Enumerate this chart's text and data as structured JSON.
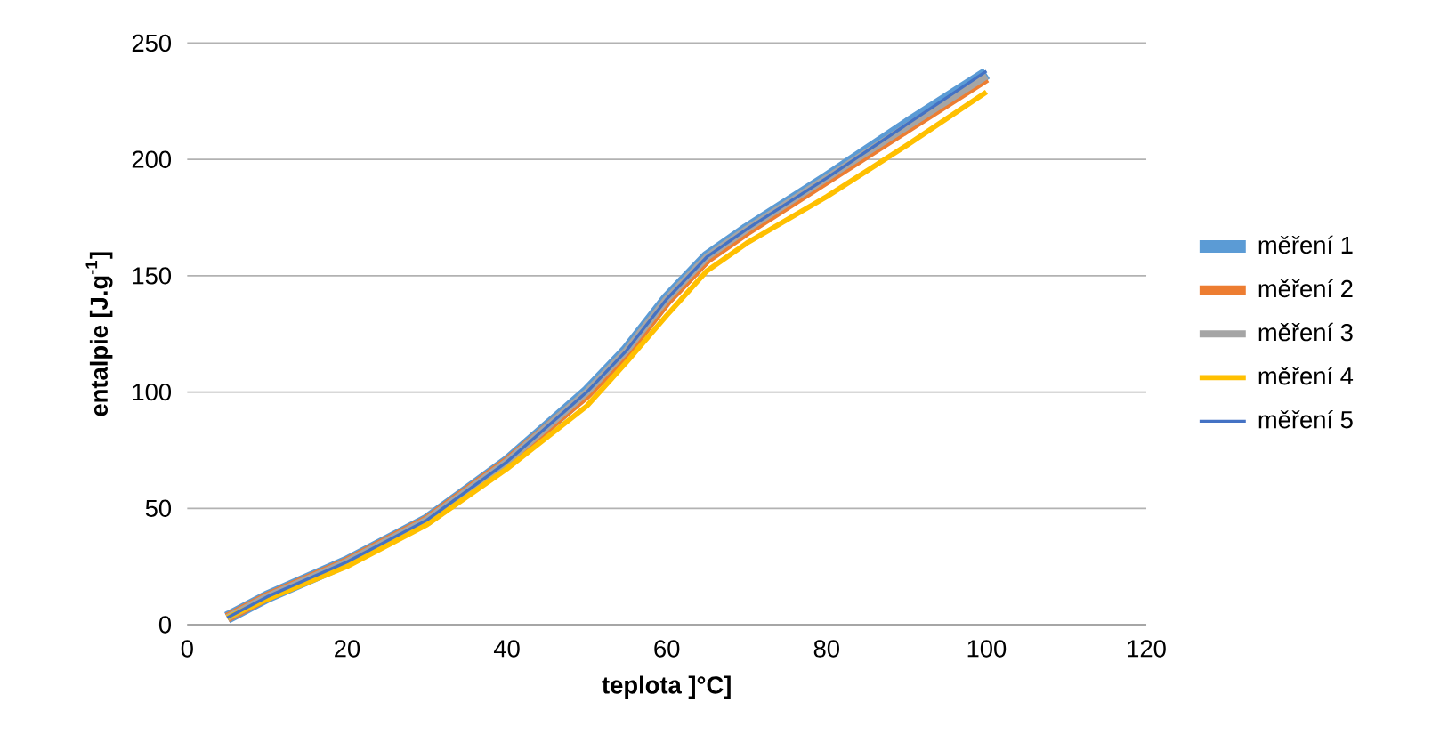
{
  "chart_data": {
    "type": "line",
    "xlabel": "teplota ]°C]",
    "ylabel": "entalpie [J.g$^{-1}$]",
    "xlim": [
      0,
      120
    ],
    "xticks": [
      0,
      20,
      40,
      60,
      80,
      100,
      120
    ],
    "ylim": [
      0,
      250
    ],
    "yticks": [
      0,
      50,
      100,
      150,
      200,
      250
    ],
    "grid": "y",
    "legend": "right",
    "marker": "none",
    "line_style": "solid",
    "x": [
      5,
      10,
      20,
      30,
      40,
      50,
      55,
      60,
      65,
      70,
      80,
      90,
      100
    ],
    "series": [
      {
        "name": "měření 1",
        "color": "#5b9bd5",
        "values": [
          3,
          12,
          27,
          45,
          70,
          100,
          118,
          140,
          158,
          170,
          192,
          215,
          237
        ]
      },
      {
        "name": "měření 2",
        "color": "#ed7d31",
        "values": [
          3,
          12,
          27,
          45,
          70,
          99,
          117,
          139,
          157,
          169,
          191,
          213,
          235
        ]
      },
      {
        "name": "měření 3",
        "color": "#a5a5a5",
        "values": [
          3,
          12,
          27,
          45,
          70,
          100,
          118,
          140,
          158,
          170,
          192,
          214,
          236
        ]
      },
      {
        "name": "měření 4",
        "color": "#ffc000",
        "values": [
          3,
          11,
          25,
          43,
          67,
          94,
          113,
          133,
          152,
          164,
          184,
          206,
          229
        ]
      },
      {
        "name": "měření 5",
        "color": "#4472c4",
        "values": [
          3,
          12,
          27,
          45,
          70,
          100,
          118,
          140,
          158,
          170,
          192,
          215,
          238
        ]
      }
    ]
  }
}
